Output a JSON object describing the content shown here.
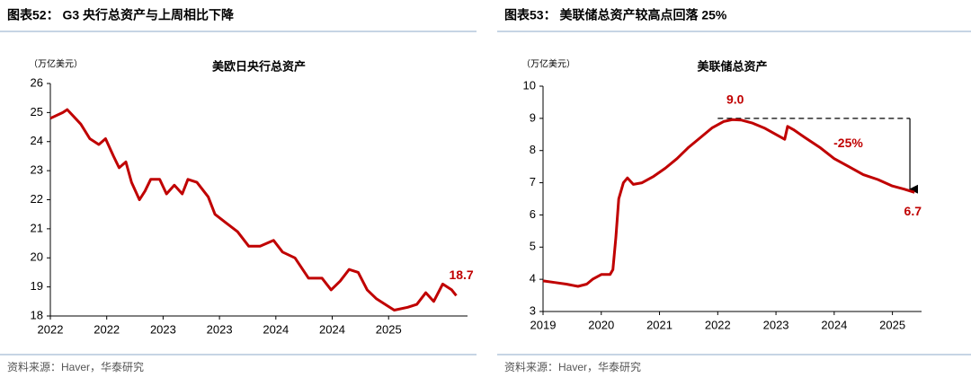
{
  "chart_data": [
    {
      "type": "line",
      "title": "图表52： G3 央行总资产与上周相比下降",
      "subtitle": "美欧日央行总资产",
      "y_label": "（万亿美元）",
      "source": "资料来源：Haver，华泰研究",
      "color": "#c00000",
      "x": [
        2022.0,
        2022.11,
        2022.15,
        2022.27,
        2022.35,
        2022.43,
        2022.49,
        2022.56,
        2022.61,
        2022.67,
        2022.72,
        2022.79,
        2022.84,
        2022.89,
        2022.97,
        2023.03,
        2023.1,
        2023.17,
        2023.22,
        2023.3,
        2023.4,
        2023.46,
        2023.56,
        2023.66,
        2023.76,
        2023.86,
        2023.98,
        2024.06,
        2024.17,
        2024.29,
        2024.41,
        2024.49,
        2024.57,
        2024.65,
        2024.73,
        2024.81,
        2024.89,
        2024.97,
        2025.05,
        2025.17,
        2025.25,
        2025.33,
        2025.4,
        2025.48,
        2025.56,
        2025.6
      ],
      "values": [
        24.8,
        25.0,
        25.1,
        24.6,
        24.1,
        23.9,
        24.1,
        23.5,
        23.1,
        23.3,
        22.6,
        22.0,
        22.3,
        22.7,
        22.7,
        22.2,
        22.5,
        22.2,
        22.7,
        22.6,
        22.1,
        21.5,
        21.2,
        20.9,
        20.4,
        20.4,
        20.6,
        20.2,
        20.0,
        19.3,
        19.3,
        18.9,
        19.2,
        19.6,
        19.5,
        18.9,
        18.6,
        18.4,
        18.2,
        18.3,
        18.4,
        18.8,
        18.5,
        19.1,
        18.9,
        18.7
      ],
      "xlim": [
        2022,
        2025.7
      ],
      "xticks": [
        2022,
        {
          "value": 2022.5,
          "label": "2022"
        },
        2023,
        {
          "value": 2023.5,
          "label": "2023"
        },
        2024,
        {
          "value": 2024.5,
          "label": "2024"
        },
        2025
      ],
      "ylim": [
        18,
        26
      ],
      "yticks": [
        18,
        19,
        20,
        21,
        22,
        23,
        24,
        25,
        26
      ],
      "annotations": [
        {
          "text": "18.7",
          "x": 2025.6,
          "y": 18.7
        }
      ]
    },
    {
      "type": "line",
      "title": "图表53： 美联储总资产较高点回落 25%",
      "subtitle": "美联储总资产",
      "y_label": "（万亿美元）",
      "source": "资料来源：Haver，华泰研究",
      "color": "#c00000",
      "x": [
        2019.0,
        2019.2,
        2019.4,
        2019.6,
        2019.75,
        2019.85,
        2020.0,
        2020.15,
        2020.2,
        2020.25,
        2020.3,
        2020.38,
        2020.45,
        2020.55,
        2020.7,
        2020.9,
        2021.1,
        2021.3,
        2021.5,
        2021.7,
        2021.9,
        2022.1,
        2022.25,
        2022.4,
        2022.6,
        2022.8,
        2023.0,
        2023.15,
        2023.2,
        2023.3,
        2023.5,
        2023.75,
        2024.0,
        2024.25,
        2024.5,
        2024.75,
        2025.0,
        2025.2,
        2025.38
      ],
      "values": [
        3.95,
        3.9,
        3.85,
        3.78,
        3.85,
        4.0,
        4.15,
        4.15,
        4.3,
        5.3,
        6.5,
        7.0,
        7.15,
        6.95,
        7.0,
        7.2,
        7.45,
        7.75,
        8.1,
        8.4,
        8.7,
        8.9,
        8.96,
        8.95,
        8.85,
        8.7,
        8.5,
        8.35,
        8.75,
        8.65,
        8.4,
        8.1,
        7.75,
        7.5,
        7.25,
        7.1,
        6.9,
        6.8,
        6.7
      ],
      "xlim": [
        2019,
        2025.5
      ],
      "xticks": [
        2019,
        2020,
        2021,
        2022,
        2023,
        2024,
        2025
      ],
      "ylim": [
        3,
        10
      ],
      "yticks": [
        3,
        4,
        5,
        6,
        7,
        8,
        9,
        10
      ],
      "reference_line": {
        "y": 9.0,
        "x": [
          2022.0,
          2025.3
        ]
      },
      "arrow": {
        "x": 2025.3,
        "y": [
          9.0,
          6.8
        ]
      },
      "annotations": [
        {
          "text": "9.0",
          "x": 2022.3,
          "y": 9.0
        },
        {
          "text": "-25%",
          "x": 2024.55,
          "y": 8.2
        },
        {
          "text": "6.7",
          "x": 2025.35,
          "y": 6.7
        }
      ]
    }
  ]
}
